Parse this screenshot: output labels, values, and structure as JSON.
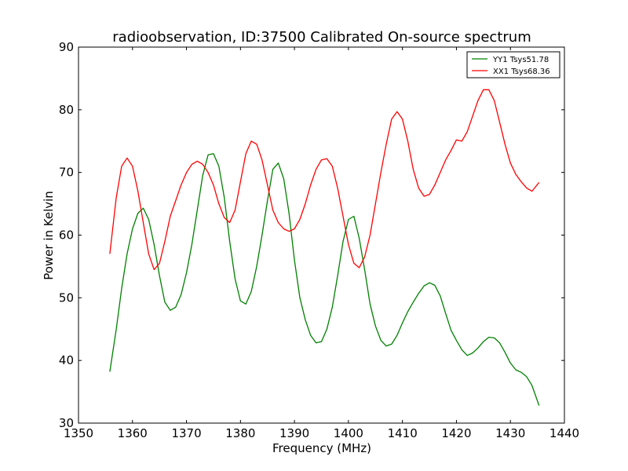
{
  "chart_data": {
    "type": "line",
    "title": "radioobservation, ID:37500 Calibrated On-source spectrum",
    "xlabel": "Frequency (MHz)",
    "ylabel": "Power in Kelvin",
    "xlim": [
      1350,
      1440
    ],
    "ylim": [
      30,
      90
    ],
    "xticks": [
      1350,
      1360,
      1370,
      1380,
      1390,
      1400,
      1410,
      1420,
      1430,
      1440
    ],
    "yticks": [
      30,
      40,
      50,
      60,
      70,
      80,
      90
    ],
    "grid": false,
    "legend_position": "top-right",
    "series": [
      {
        "name": "YY1 Tsys51.78",
        "color": "#008000",
        "x": [
          1355.8,
          1357,
          1358,
          1359,
          1360,
          1361,
          1362,
          1363,
          1364,
          1365,
          1366,
          1367,
          1368,
          1369,
          1370,
          1371,
          1372,
          1373,
          1374,
          1375,
          1376,
          1377,
          1378,
          1379,
          1380,
          1381,
          1382,
          1383,
          1384,
          1385,
          1386,
          1387,
          1388,
          1389,
          1390,
          1391,
          1392,
          1393,
          1394,
          1395,
          1396,
          1397,
          1398,
          1399,
          1400,
          1401,
          1402,
          1403,
          1404,
          1405,
          1406,
          1407,
          1408,
          1409,
          1410,
          1411,
          1412,
          1413,
          1414,
          1415,
          1416,
          1417,
          1418,
          1419,
          1420,
          1421,
          1422,
          1423,
          1424,
          1425,
          1426,
          1427,
          1428,
          1429,
          1430,
          1431,
          1432,
          1433,
          1434,
          1435.3
        ],
        "y": [
          38.2,
          45,
          51.5,
          57,
          61,
          63.5,
          64.3,
          62.5,
          58.5,
          53.5,
          49.3,
          48,
          48.5,
          50.5,
          54,
          58.5,
          64,
          69.5,
          72.8,
          73,
          71,
          66,
          59,
          53,
          49.5,
          49,
          51,
          55,
          60,
          65.5,
          70.5,
          71.5,
          69,
          63.5,
          56,
          50,
          46.5,
          44,
          42.8,
          43,
          45,
          48.5,
          53.5,
          59,
          62.5,
          63,
          59.5,
          54.5,
          49,
          45.5,
          43.2,
          42.3,
          42.6,
          44,
          46,
          47.8,
          49.3,
          50.7,
          51.9,
          52.4,
          52,
          50.3,
          47.5,
          44.8,
          43.2,
          41.7,
          40.8,
          41.2,
          42,
          43,
          43.7,
          43.6,
          42.8,
          41.3,
          39.6,
          38.5,
          38.1,
          37.4,
          36,
          32.8
        ]
      },
      {
        "name": "XX1 Tsys68.36",
        "color": "#ff0000",
        "x": [
          1355.8,
          1357,
          1358,
          1359,
          1360,
          1361,
          1362,
          1363,
          1364,
          1365,
          1366,
          1367,
          1368,
          1369,
          1370,
          1371,
          1372,
          1373,
          1374,
          1375,
          1376,
          1377,
          1378,
          1379,
          1380,
          1381,
          1382,
          1383,
          1384,
          1385,
          1386,
          1387,
          1388,
          1389,
          1390,
          1391,
          1392,
          1393,
          1394,
          1395,
          1396,
          1397,
          1398,
          1399,
          1400,
          1401,
          1402,
          1403,
          1404,
          1405,
          1406,
          1407,
          1408,
          1409,
          1410,
          1411,
          1412,
          1413,
          1414,
          1415,
          1416,
          1417,
          1418,
          1419,
          1420,
          1421,
          1422,
          1423,
          1424,
          1425,
          1426,
          1427,
          1428,
          1429,
          1430,
          1431,
          1432,
          1433,
          1434,
          1435.3
        ],
        "y": [
          57,
          66,
          71,
          72.3,
          71,
          67,
          62,
          57,
          54.5,
          55.5,
          59,
          63,
          65.5,
          68,
          70,
          71.3,
          71.8,
          71.3,
          70,
          68,
          65,
          62.8,
          62,
          64,
          68.5,
          73,
          75,
          74.5,
          72,
          68,
          64,
          62,
          61,
          60.6,
          61,
          62.5,
          65,
          68,
          70.5,
          72,
          72.2,
          71,
          67.5,
          63,
          58.5,
          55.5,
          54.8,
          56.5,
          60,
          65,
          70,
          74.5,
          78.5,
          79.7,
          78.5,
          75,
          70.5,
          67.5,
          66.2,
          66.5,
          68,
          70,
          72,
          73.5,
          75.2,
          75,
          76.5,
          79,
          81.5,
          83.2,
          83.2,
          81.5,
          78,
          74.5,
          71.5,
          69.7,
          68.5,
          67.5,
          67,
          68.4
        ]
      }
    ]
  }
}
